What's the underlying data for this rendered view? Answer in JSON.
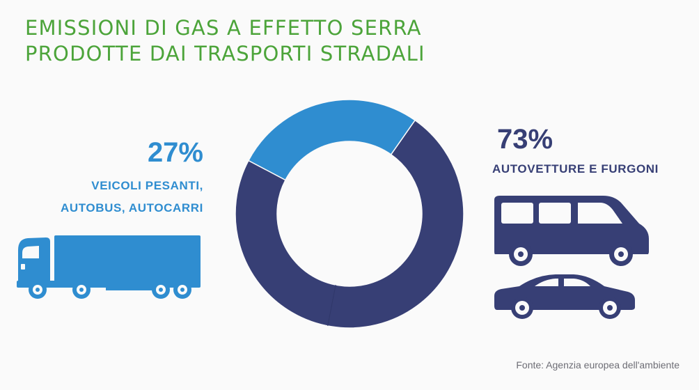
{
  "title": {
    "line1": "EMISSIONI DI GAS A EFFETTO SERRA",
    "line2": "PRODOTTE DAI TRASPORTI STRADALI"
  },
  "left": {
    "percent": "27%",
    "label_line1": "VEICOLI PESANTI,",
    "label_line2": "AUTOBUS, AUTOCARRI",
    "icon": "truck-icon"
  },
  "right": {
    "percent": "73%",
    "label": "AUTOVETTURE E FURGONI",
    "icons": [
      "van-icon",
      "car-icon"
    ]
  },
  "source": "Fonte: Agenzia europea dell'ambiente",
  "colors": {
    "title": "#4ca43a",
    "heavy": "#2f8dd0",
    "cars": "#373f75",
    "background": "#fafafa"
  },
  "chart_data": {
    "type": "pie",
    "donut": true,
    "categories": [
      "AUTOVETTURE E FURGONI",
      "VEICOLI PESANTI, AUTOBUS, AUTOCARRI"
    ],
    "values": [
      73,
      27
    ],
    "unit": "%",
    "colors": [
      "#373f75",
      "#2f8dd0"
    ]
  }
}
